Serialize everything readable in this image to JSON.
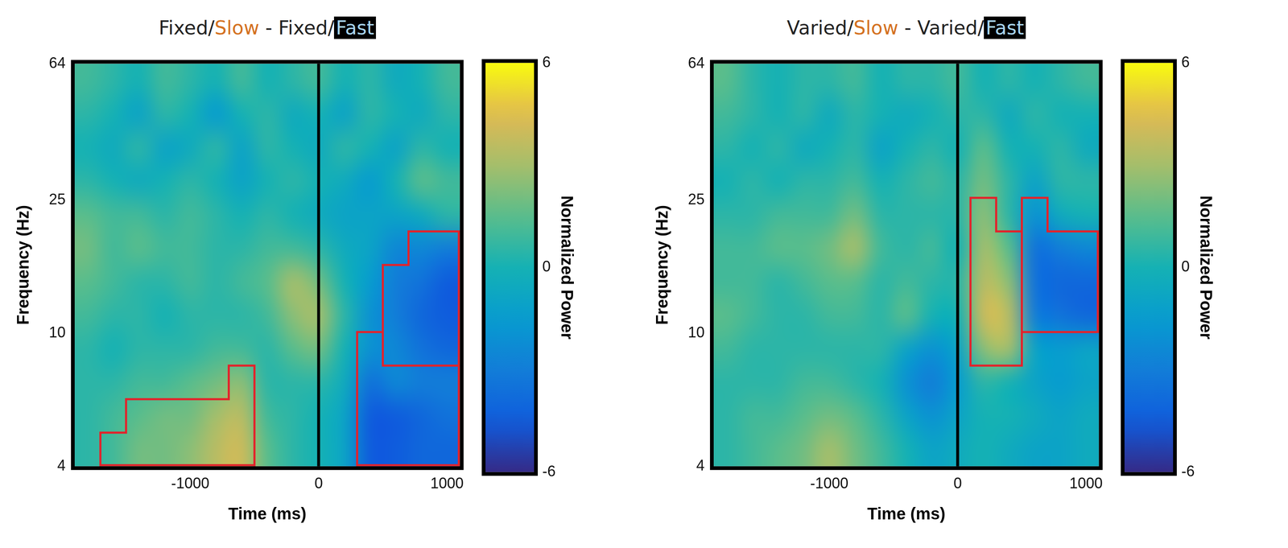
{
  "chart_data": [
    {
      "type": "heatmap",
      "title": "Fixed/Slow - Fixed/Fast",
      "conditions": [
        {
          "name": "Slow",
          "color": "#d4711f"
        },
        {
          "name": "Fast",
          "color": "#000000"
        }
      ],
      "x_label": "Time (ms)",
      "y_label": "Frequency (Hz)",
      "xlim": [
        -1900,
        1100
      ],
      "xticks": [
        -1000,
        0,
        1000
      ],
      "ylim": [
        4,
        64
      ],
      "yticks": [
        4,
        10,
        25,
        64
      ],
      "log": "y",
      "grid": false,
      "event_x": 0,
      "time_edges": [
        -1900,
        -1700,
        -1500,
        -1300,
        -1100,
        -900,
        -700,
        -500,
        -300,
        -100,
        100,
        300,
        500,
        700,
        900,
        1100
      ],
      "freq_edges": [
        4,
        5.04,
        6.35,
        8,
        10.08,
        12.7,
        16,
        20.16,
        25.4,
        32,
        40.32,
        50.8,
        64
      ],
      "power": [
        [
          0.5,
          1,
          2,
          2,
          2.5,
          3.5,
          4,
          1.5,
          0.5,
          0,
          -1,
          -4.5,
          -4.5,
          -4,
          -4
        ],
        [
          0.5,
          1,
          1.5,
          2,
          2,
          3,
          3.5,
          1,
          0.5,
          0,
          -1,
          -4.5,
          -4.5,
          -4,
          -3.5
        ],
        [
          0.5,
          0.5,
          1,
          1,
          1.5,
          2,
          2.5,
          0.5,
          0.5,
          0.5,
          -0.5,
          -3.5,
          -2.5,
          -3,
          -3
        ],
        [
          0.5,
          0,
          0.5,
          0.5,
          0.5,
          1,
          1,
          0.5,
          1.5,
          2,
          0,
          -2,
          -2.5,
          -3.5,
          -4
        ],
        [
          1,
          0.5,
          0.5,
          0,
          0.5,
          0.5,
          0.5,
          1,
          2.5,
          3,
          0.5,
          -2,
          -3,
          -4,
          -4.5
        ],
        [
          1.5,
          1,
          0.5,
          0.5,
          1,
          0.5,
          1,
          1.5,
          3,
          2,
          0,
          -1.5,
          -3,
          -3.5,
          -4.5
        ],
        [
          2,
          1,
          1.5,
          1,
          1,
          0.5,
          0.5,
          1,
          1,
          0.5,
          -0.5,
          -1,
          -2.5,
          -2.5,
          -3
        ],
        [
          1.5,
          1,
          1,
          0.5,
          1,
          0.5,
          0,
          0.5,
          0,
          -0.5,
          -1,
          -1,
          -1,
          -0.5,
          0.5
        ],
        [
          0.5,
          0,
          -0.5,
          0,
          0.5,
          0,
          -1,
          0,
          0.5,
          0,
          -0.5,
          -1.5,
          0,
          1.5,
          1
        ],
        [
          0,
          -0.5,
          0.5,
          -1,
          -0.5,
          0.5,
          -1,
          0.5,
          0,
          -0.5,
          0.5,
          0,
          -1,
          0.5,
          0
        ],
        [
          0.5,
          0,
          -1,
          0.5,
          0,
          -1.5,
          0,
          0.5,
          -0.5,
          0,
          -1,
          0.5,
          0,
          -0.5,
          0.5
        ],
        [
          1,
          0.5,
          0,
          1,
          0.5,
          0,
          1,
          0,
          0.5,
          1,
          0,
          0.5,
          -0.5,
          0,
          1
        ]
      ],
      "clusters": [
        [
          0,
          1,
          1,
          1,
          1,
          1,
          1,
          0,
          0,
          0,
          0,
          2,
          2,
          2,
          2
        ],
        [
          0,
          0,
          1,
          1,
          1,
          1,
          1,
          0,
          0,
          0,
          0,
          2,
          2,
          2,
          2
        ],
        [
          0,
          0,
          0,
          0,
          0,
          0,
          1,
          0,
          0,
          0,
          0,
          2,
          2,
          2,
          2
        ],
        [
          0,
          0,
          0,
          0,
          0,
          0,
          0,
          0,
          0,
          0,
          0,
          2,
          3,
          3,
          3
        ],
        [
          0,
          0,
          0,
          0,
          0,
          0,
          0,
          0,
          0,
          0,
          0,
          0,
          3,
          3,
          3
        ],
        [
          0,
          0,
          0,
          0,
          0,
          0,
          0,
          0,
          0,
          0,
          0,
          0,
          3,
          3,
          3
        ],
        [
          0,
          0,
          0,
          0,
          0,
          0,
          0,
          0,
          0,
          0,
          0,
          0,
          0,
          3,
          3
        ],
        [
          0,
          0,
          0,
          0,
          0,
          0,
          0,
          0,
          0,
          0,
          0,
          0,
          0,
          0,
          0
        ],
        [
          0,
          0,
          0,
          0,
          0,
          0,
          0,
          0,
          0,
          0,
          0,
          0,
          0,
          0,
          0
        ],
        [
          0,
          0,
          0,
          0,
          0,
          0,
          0,
          0,
          0,
          0,
          0,
          0,
          0,
          0,
          0
        ],
        [
          0,
          0,
          0,
          0,
          0,
          0,
          0,
          0,
          0,
          0,
          0,
          0,
          0,
          0,
          0
        ],
        [
          0,
          0,
          0,
          0,
          0,
          0,
          0,
          0,
          0,
          0,
          0,
          0,
          0,
          0,
          0
        ]
      ],
      "colorbar": {
        "label": "Normalized Power",
        "range": [
          -6,
          6
        ],
        "ticks": [
          -6,
          0,
          6
        ]
      }
    },
    {
      "type": "heatmap",
      "title": "Varied/Slow - Varied/Fast",
      "conditions": [
        {
          "name": "Slow",
          "color": "#d4711f"
        },
        {
          "name": "Fast",
          "color": "#000000"
        }
      ],
      "x_label": "Time (ms)",
      "y_label": "Frequency (Hz)",
      "xlim": [
        -1900,
        1100
      ],
      "xticks": [
        -1000,
        0,
        1000
      ],
      "ylim": [
        4,
        64
      ],
      "yticks": [
        4,
        10,
        25,
        64
      ],
      "log": "y",
      "grid": false,
      "event_x": 0,
      "time_edges": [
        -1900,
        -1700,
        -1500,
        -1300,
        -1100,
        -900,
        -700,
        -500,
        -300,
        -100,
        100,
        300,
        500,
        700,
        900,
        1100
      ],
      "freq_edges": [
        4,
        5.04,
        6.35,
        8,
        10.08,
        12.7,
        16,
        20.16,
        25.4,
        32,
        40.32,
        50.8,
        64
      ],
      "power": [
        [
          0.5,
          1,
          1.5,
          2,
          3,
          2,
          1,
          0,
          -1,
          -0.5,
          0,
          -0.5,
          -1,
          -1,
          -0.5
        ],
        [
          0.5,
          1,
          1,
          1.5,
          2,
          1.5,
          0.5,
          -1,
          -2,
          -1,
          0,
          0,
          -0.5,
          -1,
          -0.5
        ],
        [
          0.5,
          0.5,
          0.5,
          1,
          1,
          0.5,
          0,
          -2,
          -3,
          -1.5,
          0.5,
          0,
          -1,
          -1.5,
          -1
        ],
        [
          1,
          0.5,
          0.5,
          0.5,
          0.5,
          0.5,
          0.5,
          -1,
          -2,
          -1,
          2.5,
          3,
          -1,
          -1.5,
          -1
        ],
        [
          1.5,
          1,
          0.5,
          0.5,
          1,
          1,
          0.5,
          1.5,
          0,
          0,
          4,
          3.5,
          -3,
          -3.5,
          -4
        ],
        [
          1,
          1,
          0.5,
          1,
          1.5,
          1.5,
          0.5,
          1,
          0.5,
          0.5,
          3.5,
          2.5,
          -3.5,
          -4,
          -4
        ],
        [
          1,
          1,
          1.5,
          1.5,
          2,
          3,
          1,
          0.5,
          1,
          0,
          3,
          1.5,
          -3.5,
          -3,
          -2.5
        ],
        [
          0.5,
          0.5,
          1,
          1,
          1,
          2,
          0.5,
          0.5,
          0.5,
          0.5,
          2.5,
          0.5,
          -2,
          -0.5,
          0
        ],
        [
          0,
          0.5,
          0,
          0.5,
          0.5,
          1,
          0,
          0.5,
          1,
          0.5,
          2,
          0.5,
          -1,
          0.5,
          0.5
        ],
        [
          0.5,
          0,
          0.5,
          -0.5,
          0,
          0.5,
          -1,
          0,
          0.5,
          0,
          1.5,
          0,
          0,
          0.5,
          -0.5
        ],
        [
          1,
          0.5,
          0,
          0.5,
          -0.5,
          0.5,
          0,
          -0.5,
          0,
          0.5,
          0.5,
          -0.5,
          0.5,
          0,
          0
        ],
        [
          1.5,
          0.5,
          0,
          0.5,
          0.5,
          1,
          0,
          0.5,
          0.5,
          1,
          0,
          0.5,
          0,
          0.5,
          1
        ]
      ],
      "clusters": [
        [
          0,
          0,
          0,
          0,
          0,
          0,
          0,
          0,
          0,
          0,
          0,
          0,
          0,
          0,
          0
        ],
        [
          0,
          0,
          0,
          0,
          0,
          0,
          0,
          0,
          0,
          0,
          0,
          0,
          0,
          0,
          0
        ],
        [
          0,
          0,
          0,
          0,
          0,
          0,
          0,
          0,
          0,
          0,
          0,
          0,
          0,
          0,
          0
        ],
        [
          0,
          0,
          0,
          0,
          0,
          0,
          0,
          0,
          0,
          0,
          1,
          1,
          0,
          0,
          0
        ],
        [
          0,
          0,
          0,
          0,
          0,
          0,
          0,
          0,
          0,
          0,
          1,
          1,
          2,
          2,
          2
        ],
        [
          0,
          0,
          0,
          0,
          0,
          0,
          0,
          0,
          0,
          0,
          1,
          1,
          2,
          2,
          2
        ],
        [
          0,
          0,
          0,
          0,
          0,
          0,
          0,
          0,
          0,
          0,
          1,
          1,
          2,
          2,
          2
        ],
        [
          0,
          0,
          0,
          0,
          0,
          0,
          0,
          0,
          0,
          0,
          1,
          0,
          2,
          0,
          0
        ],
        [
          0,
          0,
          0,
          0,
          0,
          0,
          0,
          0,
          0,
          0,
          0,
          0,
          0,
          0,
          0
        ],
        [
          0,
          0,
          0,
          0,
          0,
          0,
          0,
          0,
          0,
          0,
          0,
          0,
          0,
          0,
          0
        ],
        [
          0,
          0,
          0,
          0,
          0,
          0,
          0,
          0,
          0,
          0,
          0,
          0,
          0,
          0,
          0
        ],
        [
          0,
          0,
          0,
          0,
          0,
          0,
          0,
          0,
          0,
          0,
          0,
          0,
          0,
          0,
          0
        ]
      ],
      "colorbar": {
        "label": "Normalized Power",
        "range": [
          -6,
          6
        ],
        "ticks": [
          -6,
          0,
          6
        ]
      }
    }
  ]
}
